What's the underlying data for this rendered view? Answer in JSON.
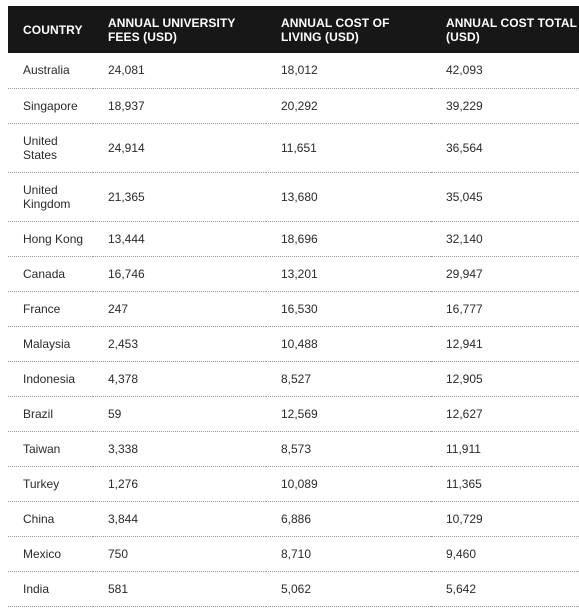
{
  "table": {
    "headers": [
      "COUNTRY",
      "ANNUAL UNIVERSITY FEES (USD)",
      "ANNUAL COST OF LIVING (USD)",
      "ANNUAL COST TOTAL (USD)"
    ],
    "rows": [
      [
        "Australia",
        "24,081",
        "18,012",
        "42,093"
      ],
      [
        "Singapore",
        "18,937",
        "20,292",
        "39,229"
      ],
      [
        "United States",
        "24,914",
        "11,651",
        "36,564"
      ],
      [
        "United Kingdom",
        "21,365",
        "13,680",
        "35,045"
      ],
      [
        "Hong Kong",
        "13,444",
        "18,696",
        "32,140"
      ],
      [
        "Canada",
        "16,746",
        "13,201",
        "29,947"
      ],
      [
        "France",
        "247",
        "16,530",
        "16,777"
      ],
      [
        "Malaysia",
        "2,453",
        "10,488",
        "12,941"
      ],
      [
        "Indonesia",
        "4,378",
        "8,527",
        "12,905"
      ],
      [
        "Brazil",
        "59",
        "12,569",
        "12,627"
      ],
      [
        "Taiwan",
        "3,338",
        "8,573",
        "11,911"
      ],
      [
        "Turkey",
        "1,276",
        "10,089",
        "11,365"
      ],
      [
        "China",
        "3,844",
        "6,886",
        "10,729"
      ],
      [
        "Mexico",
        "750",
        "8,710",
        "9,460"
      ],
      [
        "India",
        "581",
        "5,062",
        "5,642"
      ]
    ]
  }
}
